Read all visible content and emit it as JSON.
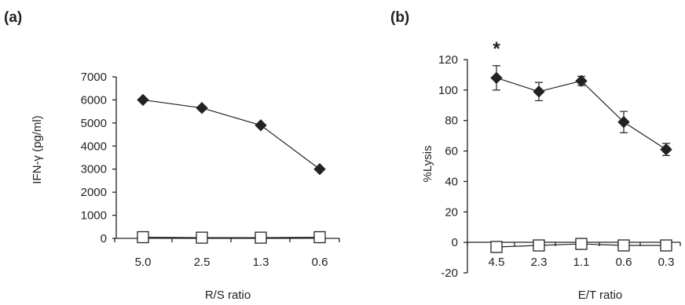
{
  "chart_data": [
    {
      "panel_label": "(a)",
      "type": "line",
      "xlabel": "R/S ratio",
      "ylabel": "IFN-γ (pg/ml)",
      "categories": [
        "5.0",
        "2.5",
        "1.3",
        "0.6"
      ],
      "ylim": [
        0,
        7000
      ],
      "yticks": [
        0,
        1000,
        2000,
        3000,
        4000,
        5000,
        6000,
        7000
      ],
      "grid": false,
      "series": [
        {
          "marker": "filled-diamond",
          "color": "#222222",
          "values": [
            6000,
            5650,
            4900,
            3000
          ]
        },
        {
          "marker": "open-square",
          "color": "#222222",
          "values": [
            50,
            30,
            30,
            50
          ]
        }
      ]
    },
    {
      "panel_label": "(b)",
      "type": "line",
      "xlabel": "E/T ratio",
      "ylabel": "%Lysis",
      "categories": [
        "4.5",
        "2.3",
        "1.1",
        "0.6",
        "0.3"
      ],
      "ylim": [
        -20,
        120
      ],
      "yticks": [
        -20,
        0,
        20,
        40,
        60,
        80,
        100,
        120
      ],
      "grid": false,
      "annotation": "*",
      "series": [
        {
          "marker": "filled-diamond",
          "color": "#222222",
          "values": [
            108,
            99,
            106,
            79,
            61
          ],
          "errors": [
            8,
            6,
            3,
            7,
            4
          ]
        },
        {
          "marker": "open-square",
          "color": "#222222",
          "values": [
            -3,
            -2,
            -1,
            -2,
            -2
          ]
        }
      ]
    }
  ]
}
